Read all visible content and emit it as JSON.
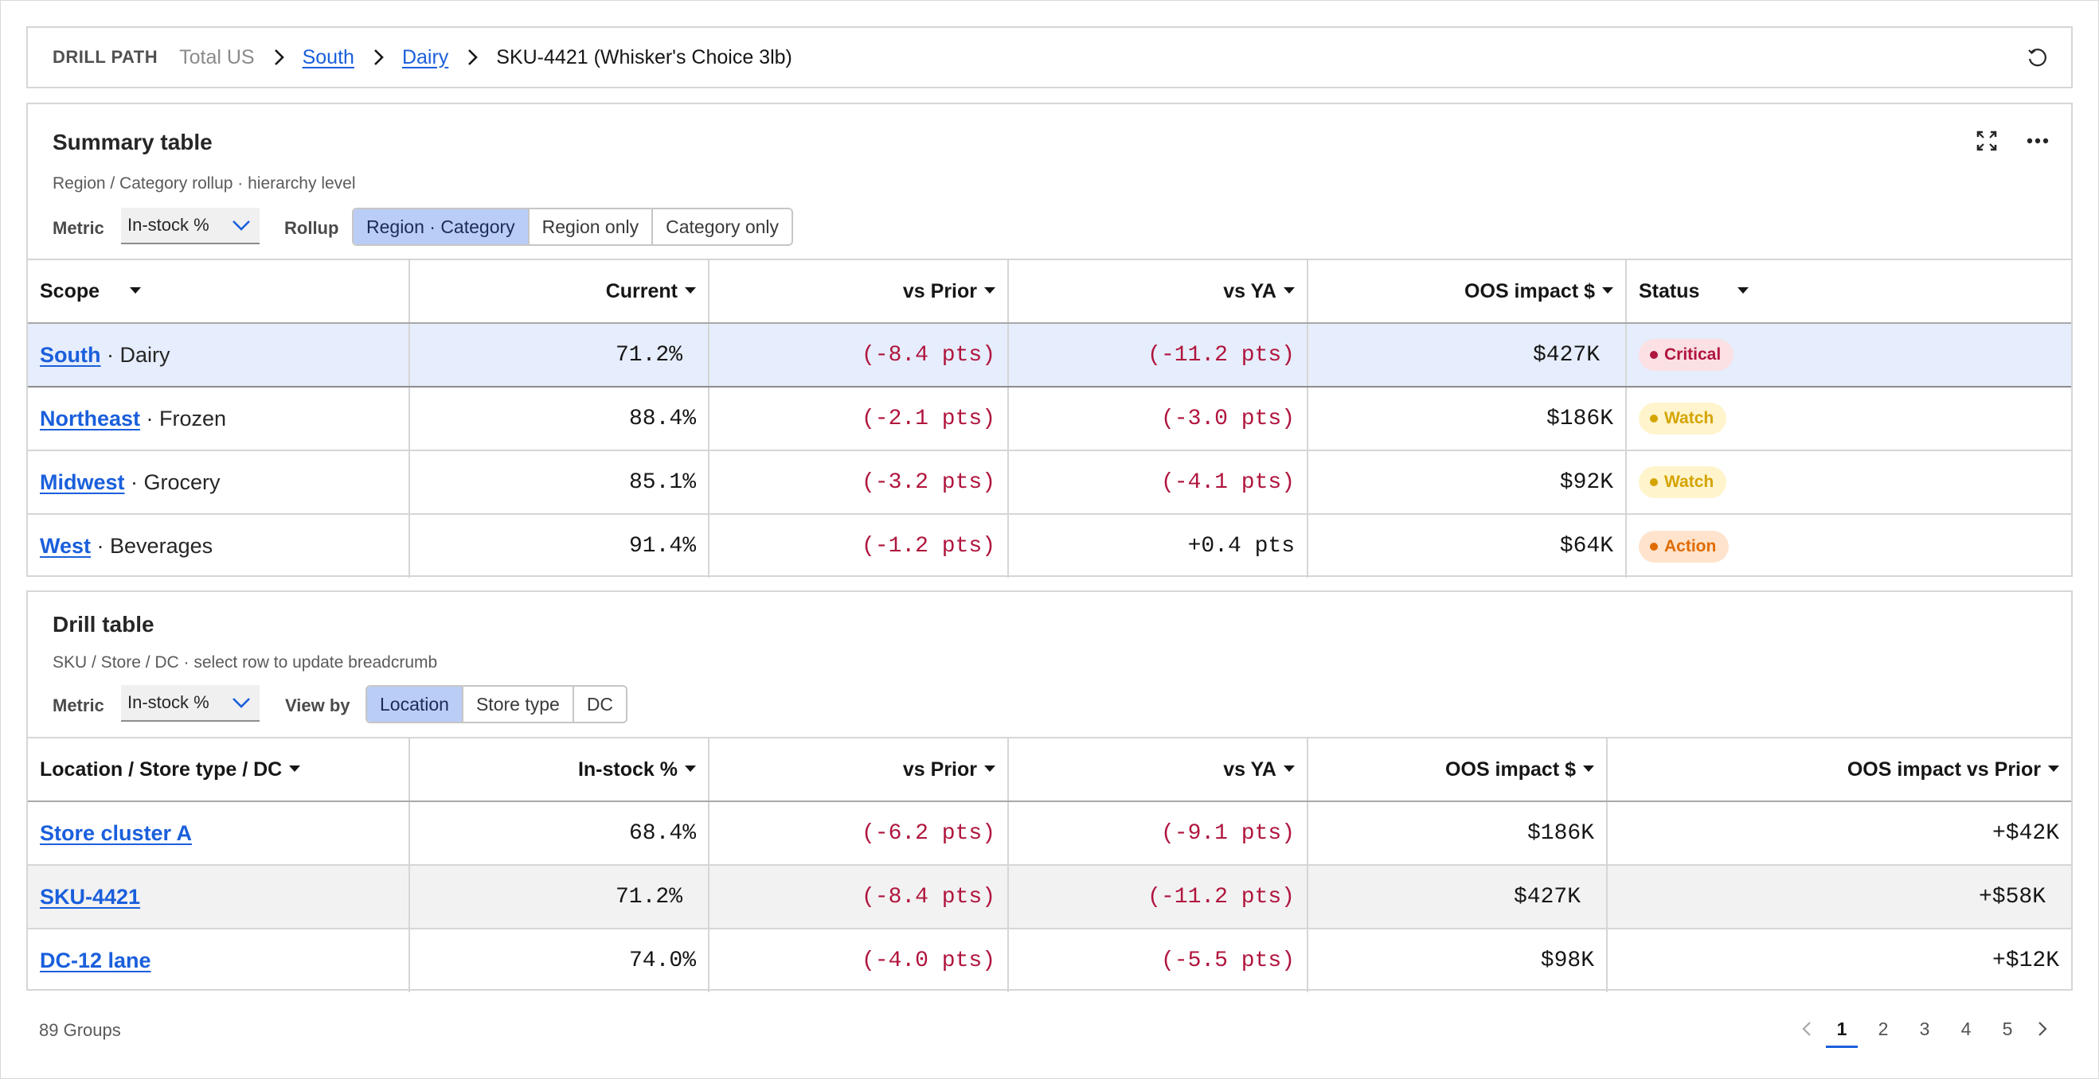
{
  "breadcrumb": {
    "label": "DRILL PATH",
    "items": [
      "Total US",
      "South",
      "Dairy",
      "SKU-4421 (Whisker's Choice 3lb)"
    ]
  },
  "summary": {
    "title": "Summary table",
    "subtitle": "Region / Category rollup · hierarchy level",
    "metric_label": "Metric",
    "metric_value": "In-stock %",
    "rollup_label": "Rollup",
    "rollup_options": [
      "Region · Category",
      "Region only",
      "Category only"
    ],
    "rollup_selected": "Region · Category",
    "columns": [
      "Scope",
      "Current",
      "vs Prior",
      "vs YA",
      "OOS impact $",
      "Status"
    ],
    "rows": [
      {
        "region": "South",
        "category": "Dairy",
        "current": "71.2%",
        "vs_prior": "(-8.4 pts)",
        "vs_ya": "(-11.2 pts)",
        "oos": "$427K",
        "status": "Critical"
      },
      {
        "region": "Northeast",
        "category": "Frozen",
        "current": "88.4%",
        "vs_prior": "(-2.1 pts)",
        "vs_ya": "(-3.0 pts)",
        "oos": "$186K",
        "status": "Watch"
      },
      {
        "region": "Midwest",
        "category": "Grocery",
        "current": "85.1%",
        "vs_prior": "(-3.2 pts)",
        "vs_ya": "(-4.1 pts)",
        "oos": "$92K",
        "status": "Watch"
      },
      {
        "region": "West",
        "category": "Beverages",
        "current": "91.4%",
        "vs_prior": "(-1.2 pts)",
        "vs_ya": "+0.4 pts",
        "oos": "$64K",
        "status": "Action"
      }
    ]
  },
  "drill": {
    "title": "Drill table",
    "subtitle": "SKU / Store / DC · select row to update breadcrumb",
    "metric_label": "Metric",
    "metric_value": "In-stock %",
    "viewby_label": "View by",
    "viewby_options": [
      "Location",
      "Store type",
      "DC"
    ],
    "viewby_selected": "Location",
    "columns": [
      "Location / Store type / DC",
      "In-stock %",
      "vs Prior",
      "vs YA",
      "OOS impact $",
      "OOS impact vs Prior"
    ],
    "rows": [
      {
        "name": "Store cluster A",
        "instock": "68.4%",
        "vs_prior": "(-6.2 pts)",
        "vs_ya": "(-9.1 pts)",
        "oos": "$186K",
        "oos_vs_prior": "+$42K"
      },
      {
        "name": "SKU-4421",
        "instock": "71.2%",
        "vs_prior": "(-8.4 pts)",
        "vs_ya": "(-11.2 pts)",
        "oos": "$427K",
        "oos_vs_prior": "+$58K"
      },
      {
        "name": "DC-12 lane",
        "instock": "74.0%",
        "vs_prior": "(-4.0 pts)",
        "vs_ya": "(-5.5 pts)",
        "oos": "$98K",
        "oos_vs_prior": "+$12K"
      }
    ]
  },
  "footer": {
    "groups": "89 Groups",
    "pages": [
      "1",
      "2",
      "3",
      "4",
      "5"
    ],
    "current_page": "1"
  },
  "colors": {
    "link": "#1a5fdc",
    "negative": "#b0153d",
    "critical_bg": "#fbe0e4",
    "critical_fg": "#b0153d",
    "watch_bg": "#fff4cc",
    "watch_fg": "#d4a400",
    "action_bg": "#ffe3cc",
    "action_fg": "#e06c00",
    "selected_row": "#e6edfc",
    "segment_active": "#b9cdf6"
  },
  "icons": [
    "chevron-right-icon",
    "reset-icon",
    "maximize-icon",
    "overflow-menu-icon",
    "chevron-down-icon",
    "caret-down-icon",
    "chevron-left-icon"
  ]
}
